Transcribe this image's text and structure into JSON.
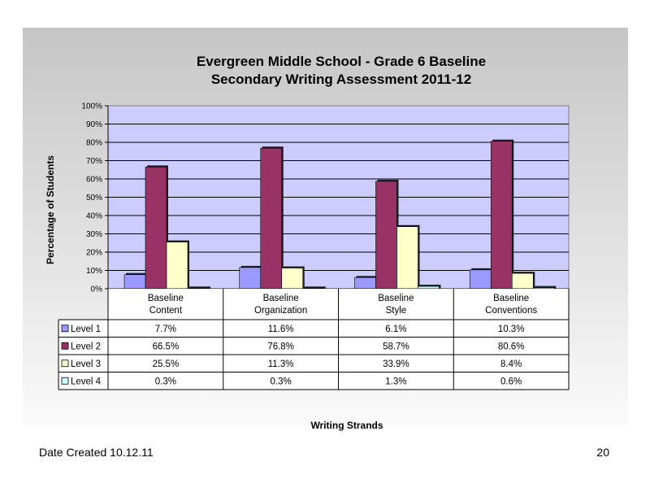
{
  "footer": {
    "date_created": "Date Created  10.12.11",
    "page_number": "20"
  },
  "chart_data": {
    "type": "bar",
    "title": [
      "Evergreen Middle School - Grade 6 Baseline",
      "Secondary Writing Assessment   2011-12"
    ],
    "xlabel": "Writing Strands",
    "ylabel": "Percentage of Students",
    "ylim": [
      0,
      100
    ],
    "yticks": [
      "0%",
      "10%",
      "20%",
      "30%",
      "40%",
      "50%",
      "60%",
      "70%",
      "80%",
      "90%",
      "100%"
    ],
    "categories": [
      [
        "Baseline",
        "Content"
      ],
      [
        "Baseline",
        "Organization"
      ],
      [
        "Baseline",
        "Style"
      ],
      [
        "Baseline",
        "Conventions"
      ]
    ],
    "series": [
      {
        "name": "Level 1",
        "color": "#9999ff",
        "values": [
          7.7,
          11.6,
          6.1,
          10.3
        ],
        "labels": [
          "7.7%",
          "11.6%",
          "6.1%",
          "10.3%"
        ]
      },
      {
        "name": "Level 2",
        "color": "#993366",
        "values": [
          66.5,
          76.8,
          58.7,
          80.6
        ],
        "labels": [
          "66.5%",
          "76.8%",
          "58.7%",
          "80.6%"
        ]
      },
      {
        "name": "Level 3",
        "color": "#ffffcc",
        "values": [
          25.5,
          11.3,
          33.9,
          8.4
        ],
        "labels": [
          "25.5%",
          "11.3%",
          "33.9%",
          "8.4%"
        ]
      },
      {
        "name": "Level 4",
        "color": "#ccffff",
        "values": [
          0.3,
          0.3,
          1.3,
          0.6
        ],
        "labels": [
          "0.3%",
          "0.3%",
          "1.3%",
          "0.6%"
        ]
      }
    ],
    "plot_background": "#ccccff",
    "grid": true,
    "legend": "data-table"
  }
}
